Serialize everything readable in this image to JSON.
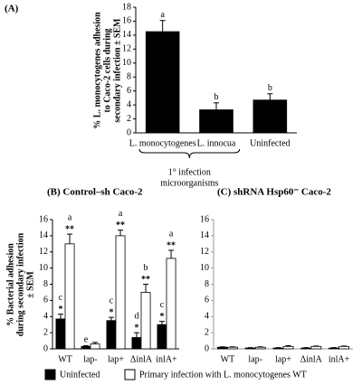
{
  "chart_data": [
    {
      "type": "bar",
      "title": "(A)",
      "ylabel": [
        "% L. monocytogenes adhesion",
        "to Caco-2 cells during",
        "secondary infection ± SEM"
      ],
      "categories": [
        "L. monocytogenes",
        "L. innocua",
        "Uninfected"
      ],
      "series": [
        {
          "color": "#000000",
          "values": [
            14.5,
            3.3,
            4.7
          ],
          "errors": [
            1.6,
            1.0,
            0.9
          ],
          "letters": [
            "a",
            "b",
            "b"
          ]
        }
      ],
      "ylim": [
        0,
        18
      ],
      "yticks": [
        0,
        2,
        4,
        6,
        8,
        10,
        12,
        14,
        16,
        18
      ],
      "bracket_label": [
        "1° infection",
        "microorganisms"
      ]
    },
    {
      "type": "bar",
      "title": "(B) Control–sh Caco-2",
      "ylabel": [
        "% Bacterial adhesion",
        "during secondary infection",
        "± SEM"
      ],
      "categories": [
        "WT",
        "lap-",
        "lap+",
        "ΔinlA",
        "inlA+"
      ],
      "series": [
        {
          "name": "Uninfected",
          "color": "#000000",
          "values": [
            3.7,
            0.3,
            3.5,
            1.4,
            3.0
          ],
          "errors": [
            0.6,
            0.1,
            0.4,
            0.6,
            0.4
          ],
          "letters": [
            "c",
            "e",
            "c",
            "d",
            "c"
          ],
          "stars": [
            "*",
            null,
            "*",
            "*",
            "*"
          ]
        },
        {
          "name": "Primary infection with L. monocytogenes WT",
          "color": "#ffffff",
          "values": [
            13.0,
            0.6,
            14.0,
            7.0,
            11.2
          ],
          "errors": [
            1.2,
            0.2,
            0.7,
            1.0,
            1.0
          ],
          "letters": [
            "a",
            null,
            "a",
            "b",
            "a"
          ],
          "stars": [
            "**",
            null,
            "**",
            "**",
            "**"
          ]
        }
      ],
      "ylim": [
        0,
        16
      ],
      "yticks": [
        0,
        2,
        4,
        6,
        8,
        10,
        12,
        14,
        16
      ]
    },
    {
      "type": "bar",
      "title": "(C) shRNA Hsp60⁻ Caco-2",
      "categories": [
        "WT",
        "lap-",
        "lap+",
        "ΔinlA",
        "inlA+"
      ],
      "series": [
        {
          "color": "#000000",
          "values": [
            0.2,
            0.1,
            0.1,
            0.1,
            0.1
          ],
          "errors": [
            0.05,
            0.05,
            0.05,
            0.05,
            0.05
          ]
        },
        {
          "color": "#ffffff",
          "values": [
            0.2,
            0.2,
            0.3,
            0.3,
            0.3
          ],
          "errors": [
            0.05,
            0.05,
            0.1,
            0.05,
            0.05
          ]
        }
      ],
      "ylim": [
        0,
        16
      ],
      "yticks": [
        0,
        2,
        4,
        6,
        8,
        10,
        12,
        14,
        16
      ]
    }
  ]
}
